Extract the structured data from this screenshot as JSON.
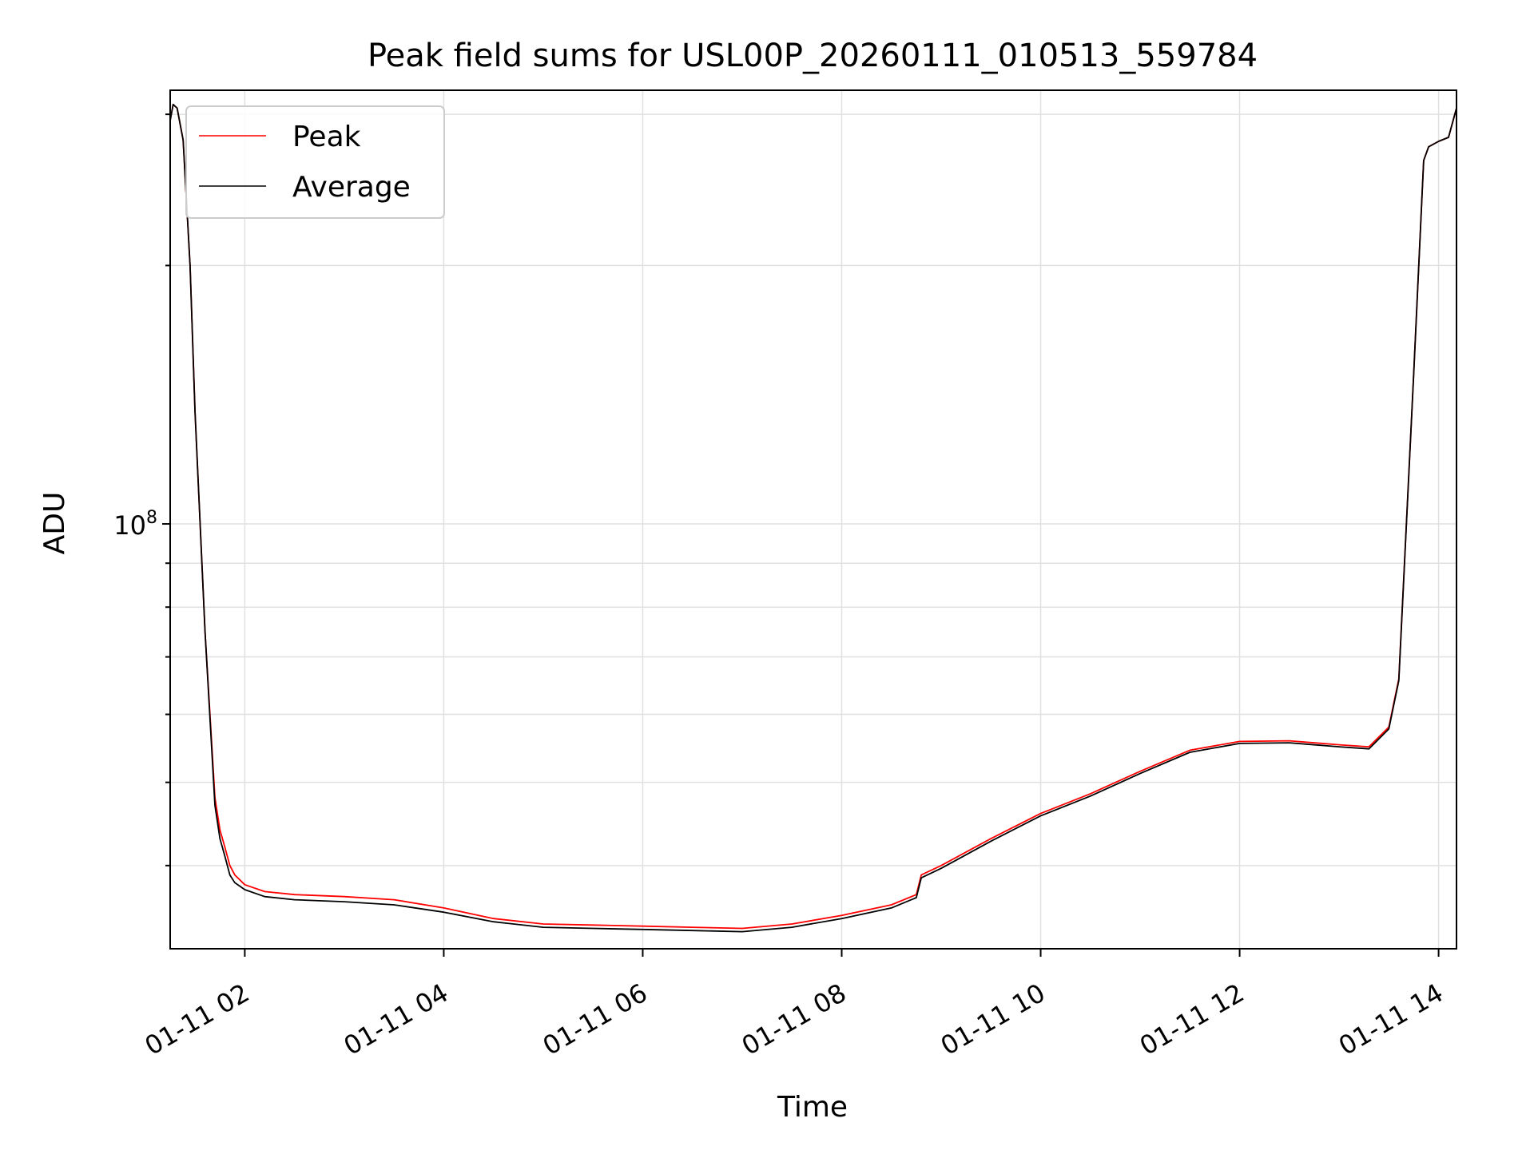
{
  "chart_data": {
    "type": "line",
    "title": "Peak field sums for USL00P_20260111_010513_559784",
    "xlabel": "Time",
    "ylabel": "ADU",
    "yscale": "log",
    "grid": true,
    "legend_position": "upper-left",
    "x_ticks": [
      "01-11 02",
      "01-11 04",
      "01-11 06",
      "01-11 08",
      "01-11 10",
      "01-11 12",
      "01-11 14"
    ],
    "x_tick_hours": [
      2,
      4,
      6,
      8,
      10,
      12,
      14
    ],
    "xlim_hours": [
      1.25,
      14.18
    ],
    "y_major_tick": {
      "base": "10",
      "exponent": "8",
      "value": 100000000
    },
    "ylim": [
      32000000,
      320000000
    ],
    "colors": {
      "peak": "#ff0000",
      "average": "#000000",
      "grid": "#e0e0e0"
    },
    "series": [
      {
        "name": "Peak",
        "color": "#ff0000",
        "x_hours": [
          1.25,
          1.28,
          1.32,
          1.38,
          1.45,
          1.5,
          1.6,
          1.7,
          1.75,
          1.8,
          1.85,
          1.9,
          2.0,
          2.2,
          2.5,
          3.0,
          3.5,
          4.0,
          4.5,
          5.0,
          5.5,
          6.0,
          6.5,
          7.0,
          7.5,
          8.0,
          8.5,
          8.75,
          8.8,
          9.0,
          9.5,
          10.0,
          10.5,
          11.0,
          11.5,
          12.0,
          12.5,
          13.0,
          13.3,
          13.5,
          13.6,
          13.75,
          13.85,
          13.9,
          14.0,
          14.1,
          14.18
        ],
        "values": [
          295000000,
          308000000,
          305000000,
          280000000,
          200000000,
          135000000,
          75000000,
          48000000,
          44000000,
          42000000,
          40000000,
          39000000,
          38000000,
          37300000,
          37000000,
          36800000,
          36500000,
          35700000,
          34700000,
          34200000,
          34100000,
          34000000,
          33900000,
          33800000,
          34200000,
          35000000,
          36000000,
          37000000,
          39000000,
          40000000,
          43000000,
          46000000,
          48500000,
          51500000,
          54500000,
          55800000,
          55900000,
          55300000,
          55000000,
          58000000,
          66000000,
          150000000,
          265000000,
          275000000,
          279000000,
          282000000,
          305000000
        ]
      },
      {
        "name": "Average",
        "color": "#000000",
        "x_hours": [
          1.25,
          1.28,
          1.32,
          1.38,
          1.45,
          1.5,
          1.6,
          1.7,
          1.75,
          1.8,
          1.85,
          1.9,
          2.0,
          2.2,
          2.5,
          3.0,
          3.5,
          4.0,
          4.5,
          5.0,
          5.5,
          6.0,
          6.5,
          7.0,
          7.5,
          8.0,
          8.5,
          8.75,
          8.8,
          9.0,
          9.5,
          10.0,
          10.5,
          11.0,
          11.5,
          12.0,
          12.5,
          13.0,
          13.3,
          13.5,
          13.6,
          13.75,
          13.85,
          13.9,
          14.0,
          14.1,
          14.18
        ],
        "values": [
          295000000,
          308000000,
          305000000,
          280000000,
          200000000,
          135000000,
          75000000,
          47000000,
          43000000,
          41000000,
          39000000,
          38200000,
          37500000,
          36800000,
          36500000,
          36300000,
          36000000,
          35300000,
          34400000,
          33900000,
          33800000,
          33700000,
          33600000,
          33500000,
          33900000,
          34700000,
          35700000,
          36700000,
          38700000,
          39700000,
          42700000,
          45700000,
          48200000,
          51200000,
          54200000,
          55500000,
          55600000,
          55000000,
          54700000,
          57700000,
          65700000,
          150000000,
          265000000,
          275000000,
          279000000,
          282000000,
          305000000
        ]
      }
    ]
  }
}
